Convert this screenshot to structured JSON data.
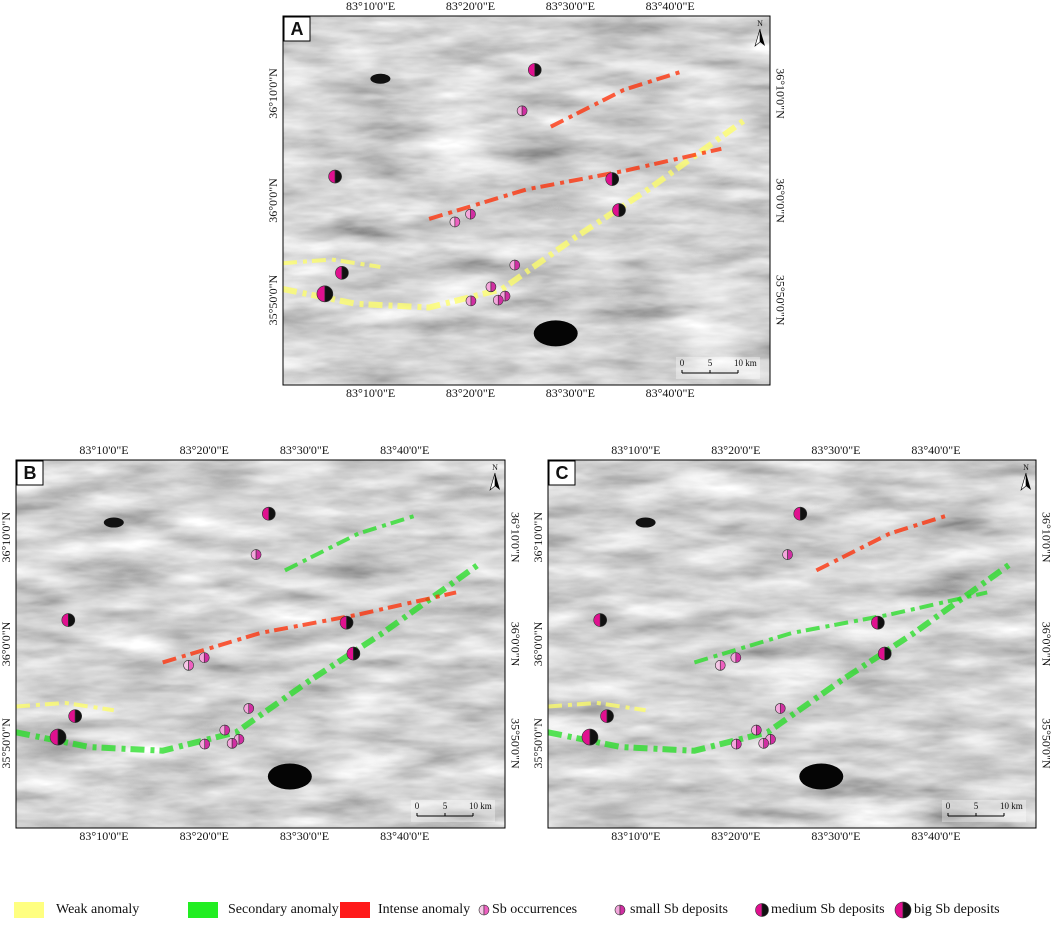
{
  "panels": [
    {
      "label": "A",
      "north": "N",
      "scale": [
        "0",
        "5",
        "10 km"
      ],
      "top_labels": [
        "83°10'0\"E",
        "83°20'0\"E",
        "83°30'0\"E",
        "83°40'0\"E"
      ],
      "bottom_labels": [
        "83°10'0\"E",
        "83°20'0\"E",
        "83°30'0\"E",
        "83°40'0\"E"
      ],
      "left_labels": [
        "36°10'0\"N",
        "36°0'0\"N",
        "35°50'0\"N"
      ],
      "right_labels": [
        "36°10'0\"N",
        "36°0'0\"N",
        "35°50'0\"N"
      ]
    },
    {
      "label": "B",
      "north": "N",
      "scale": [
        "0",
        "5",
        "10 km"
      ],
      "top_labels": [
        "83°10'0\"E",
        "83°20'0\"E",
        "83°30'0\"E",
        "83°40'0\"E"
      ],
      "bottom_labels": [
        "83°10'0\"E",
        "83°20'0\"E",
        "83°30'0\"E",
        "83°40'0\"E"
      ],
      "left_labels": [
        "36°10'0\"N",
        "36°0'0\"N",
        "35°50'0\"N"
      ],
      "right_labels": [
        "36°10'0\"N",
        "36°0'0\"N",
        "35°50'0\"N"
      ]
    },
    {
      "label": "C",
      "north": "N",
      "scale": [
        "0",
        "5",
        "10 km"
      ],
      "top_labels": [
        "83°10'0\"E",
        "83°20'0\"E",
        "83°30'0\"E",
        "83°40'0\"E"
      ],
      "bottom_labels": [
        "83°10'0\"E",
        "83°20'0\"E",
        "83°30'0\"E",
        "83°40'0\"E"
      ],
      "left_labels": [
        "36°10'0\"N",
        "36°0'0\"N",
        "35°50'0\"N"
      ],
      "right_labels": [
        "36°10'0\"N",
        "36°0'0\"N",
        "35°50'0\"N"
      ]
    }
  ],
  "legend": [
    "Weak anomaly",
    "Secondary anomaly",
    "Intense anomaly",
    "Sb occurrences",
    "small Sb deposits",
    "medium Sb deposits",
    "big Sb deposits"
  ]
}
